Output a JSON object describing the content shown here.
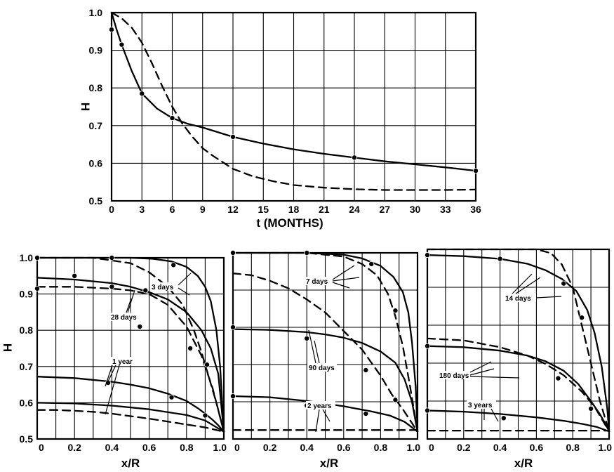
{
  "chart_data": [
    {
      "type": "line",
      "xlabel": "t (MONTHS)",
      "ylabel": "H",
      "xlim": [
        0,
        36
      ],
      "ylim": [
        0.5,
        1.0
      ],
      "xticks": [
        0,
        3,
        6,
        9,
        12,
        15,
        18,
        21,
        24,
        27,
        30,
        33,
        36
      ],
      "yticks": [
        0.5,
        0.6,
        0.7,
        0.8,
        0.9,
        1.0
      ],
      "ytick_labels": [
        "0.5",
        "0.6",
        "0.7",
        "0.8",
        "0.9",
        "1.0"
      ],
      "grid": true,
      "series": [
        {
          "style": "solid",
          "x": [
            0,
            0.5,
            1,
            2,
            3,
            4.5,
            6,
            7.5,
            9,
            12,
            15,
            18,
            21,
            24,
            27,
            30,
            33,
            36
          ],
          "y": [
            1.0,
            0.955,
            0.915,
            0.845,
            0.785,
            0.745,
            0.72,
            0.705,
            0.695,
            0.67,
            0.652,
            0.637,
            0.625,
            0.615,
            0.605,
            0.597,
            0.589,
            0.58
          ]
        },
        {
          "style": "dashed",
          "x": [
            0,
            1,
            2,
            3,
            4,
            5,
            6,
            7,
            8,
            9,
            10,
            12,
            14,
            16,
            18,
            21,
            24,
            27,
            30,
            33,
            36
          ],
          "y": [
            1.0,
            0.985,
            0.96,
            0.92,
            0.865,
            0.805,
            0.75,
            0.705,
            0.67,
            0.64,
            0.62,
            0.585,
            0.565,
            0.552,
            0.542,
            0.535,
            0.531,
            0.529,
            0.529,
            0.529,
            0.53
          ]
        }
      ],
      "points": {
        "x": [
          0,
          1,
          3,
          6,
          12,
          24,
          36
        ],
        "y": [
          0.955,
          0.915,
          0.785,
          0.72,
          0.67,
          0.615,
          0.58
        ]
      }
    },
    {
      "type": "line",
      "xlabel": "x/R",
      "ylabel": "H",
      "xlim": [
        0,
        1.0
      ],
      "ylim": [
        0.5,
        1.0
      ],
      "xticks": [
        0,
        0.2,
        0.4,
        0.6,
        0.8,
        1.0
      ],
      "xtick_labels": [
        "0",
        "0.2",
        "0.4",
        "0.6",
        "0.8",
        "1.0"
      ],
      "yticks": [
        0.5,
        0.6,
        0.7,
        0.8,
        0.9,
        1.0
      ],
      "ytick_labels": [
        "0.5",
        "0.6",
        "0.7",
        "0.8",
        "0.9",
        "1.0"
      ],
      "grid": true,
      "series": [
        {
          "style": "solid",
          "x": [
            0,
            0.3,
            0.5,
            0.62,
            0.72,
            0.8,
            0.86,
            0.9,
            0.93,
            0.96,
            0.98,
            1.0
          ],
          "y": [
            1.0,
            1.0,
            1.0,
            0.997,
            0.99,
            0.975,
            0.95,
            0.92,
            0.88,
            0.8,
            0.7,
            0.52
          ]
        },
        {
          "style": "dashed",
          "x": [
            0,
            0.3,
            0.5,
            0.6,
            0.7,
            0.78,
            0.84,
            0.88,
            0.92,
            0.96,
            1.0
          ],
          "y": [
            1.0,
            1.0,
            0.985,
            0.96,
            0.92,
            0.87,
            0.8,
            0.74,
            0.67,
            0.6,
            0.52
          ]
        },
        {
          "style": "solid",
          "x": [
            0,
            0.2,
            0.4,
            0.5,
            0.6,
            0.7,
            0.8,
            0.88,
            0.93,
            0.97,
            1.0
          ],
          "y": [
            0.945,
            0.94,
            0.93,
            0.92,
            0.905,
            0.885,
            0.85,
            0.8,
            0.75,
            0.68,
            0.52
          ]
        },
        {
          "style": "dashed",
          "x": [
            0,
            0.2,
            0.4,
            0.5,
            0.6,
            0.7,
            0.8,
            0.88,
            0.94,
            1.0
          ],
          "y": [
            0.92,
            0.92,
            0.915,
            0.91,
            0.9,
            0.87,
            0.81,
            0.73,
            0.64,
            0.52
          ]
        },
        {
          "style": "solid",
          "x": [
            0,
            0.2,
            0.4,
            0.5,
            0.6,
            0.7,
            0.8,
            0.86,
            0.9,
            0.94,
            0.97,
            1.0
          ],
          "y": [
            0.672,
            0.668,
            0.658,
            0.65,
            0.64,
            0.625,
            0.605,
            0.585,
            0.57,
            0.553,
            0.538,
            0.52
          ]
        },
        {
          "style": "solid",
          "x": [
            0,
            0.2,
            0.4,
            0.6,
            0.8,
            0.9,
            1.0
          ],
          "y": [
            0.6,
            0.598,
            0.592,
            0.582,
            0.566,
            0.551,
            0.52
          ]
        },
        {
          "style": "dashed",
          "x": [
            0,
            0.1,
            0.2,
            0.3,
            0.4,
            0.5,
            0.6,
            0.7,
            0.8,
            0.9,
            1.0
          ],
          "y": [
            0.58,
            0.58,
            0.578,
            0.575,
            0.57,
            0.563,
            0.556,
            0.548,
            0.54,
            0.532,
            0.52
          ]
        }
      ],
      "points": {
        "x": [
          0,
          0.4,
          0.73,
          0.2,
          0.58,
          0.0,
          0.38,
          0.72,
          0.9,
          0.4,
          0.55,
          0.82,
          0.91
        ],
        "y": [
          1.0,
          1.0,
          0.98,
          0.95,
          0.91,
          0.915,
          0.655,
          0.615,
          0.565,
          0.92,
          0.81,
          0.75,
          0.705
        ]
      },
      "annotations": [
        "3 days",
        "28 days",
        "1 year"
      ]
    },
    {
      "type": "line",
      "xlabel": "x/R",
      "xlim": [
        0,
        1.0
      ],
      "ylim": [
        0.5,
        1.0
      ],
      "xticks": [
        0,
        0.2,
        0.4,
        0.6,
        0.8,
        1.0
      ],
      "xtick_labels": [
        "0",
        "0.2",
        "0.4",
        "0.6",
        "0.8",
        "1.0"
      ],
      "yticks": [
        0.5,
        0.6,
        0.7,
        0.8,
        0.9,
        1.0
      ],
      "grid": true,
      "series": [
        {
          "style": "solid",
          "x": [
            0,
            0.4,
            0.6,
            0.7,
            0.8,
            0.87,
            0.92,
            0.95,
            0.97,
            0.99,
            1.0
          ],
          "y": [
            1.0,
            1.0,
            0.995,
            0.985,
            0.965,
            0.935,
            0.895,
            0.84,
            0.76,
            0.64,
            0.52
          ]
        },
        {
          "style": "dashed",
          "x": [
            0,
            0.4,
            0.6,
            0.7,
            0.78,
            0.84,
            0.88,
            0.92,
            0.96,
            1.0
          ],
          "y": [
            1.0,
            1.0,
            0.99,
            0.97,
            0.94,
            0.89,
            0.83,
            0.75,
            0.64,
            0.52
          ]
        },
        {
          "style": "dashed",
          "x": [
            0,
            0.1,
            0.2,
            0.3,
            0.4,
            0.5,
            0.6,
            0.7,
            0.8,
            0.86,
            0.92,
            0.96,
            1.0
          ],
          "y": [
            0.945,
            0.94,
            0.925,
            0.905,
            0.875,
            0.84,
            0.79,
            0.74,
            0.67,
            0.62,
            0.58,
            0.55,
            0.52
          ]
        },
        {
          "style": "solid",
          "x": [
            0,
            0.2,
            0.4,
            0.5,
            0.6,
            0.7,
            0.8,
            0.88,
            0.93,
            0.97,
            1.0
          ],
          "y": [
            0.795,
            0.793,
            0.787,
            0.781,
            0.772,
            0.758,
            0.735,
            0.705,
            0.66,
            0.6,
            0.52
          ]
        },
        {
          "style": "solid",
          "x": [
            0,
            0.2,
            0.4,
            0.6,
            0.75,
            0.85,
            0.93,
            1.0
          ],
          "y": [
            0.615,
            0.612,
            0.602,
            0.588,
            0.574,
            0.563,
            0.546,
            0.52
          ]
        },
        {
          "style": "dashed",
          "x": [
            0,
            0.2,
            0.4,
            0.6,
            0.8,
            1.0
          ],
          "y": [
            0.524,
            0.524,
            0.524,
            0.524,
            0.524,
            0.524
          ]
        }
      ],
      "points": {
        "x": [
          0.0,
          0.4,
          0.75,
          0.88,
          0.0,
          0.4,
          0.72,
          0.0,
          0.4,
          0.72,
          0.88
        ],
        "y": [
          1.0,
          1.0,
          0.97,
          0.845,
          0.8,
          0.77,
          0.685,
          0.615,
          0.59,
          0.568,
          0.605
        ]
      },
      "annotations": [
        "7 days",
        "90 days",
        "2 years"
      ]
    },
    {
      "type": "line",
      "xlabel": "x/R",
      "xlim": [
        0,
        1.0
      ],
      "ylim": [
        0.5,
        1.0
      ],
      "xticks": [
        0,
        0.2,
        0.4,
        0.6,
        0.8,
        1.0
      ],
      "xtick_labels": [
        "0",
        "0.2",
        "0.4",
        "0.6",
        "0.8",
        "1.0"
      ],
      "yticks": [
        0.5,
        0.6,
        0.7,
        0.8,
        0.9,
        1.0
      ],
      "grid": true,
      "series": [
        {
          "style": "solid",
          "x": [
            0,
            0.2,
            0.4,
            0.55,
            0.65,
            0.74,
            0.82,
            0.88,
            0.92,
            0.96,
            0.99,
            1.0
          ],
          "y": [
            0.985,
            0.982,
            0.975,
            0.962,
            0.945,
            0.922,
            0.89,
            0.84,
            0.78,
            0.69,
            0.58,
            0.52
          ]
        },
        {
          "style": "dashed",
          "x": [
            0,
            0.4,
            0.6,
            0.68,
            0.74,
            0.8,
            0.85,
            0.9,
            0.95,
            1.0
          ],
          "y": [
            1.0,
            1.0,
            1.0,
            0.99,
            0.96,
            0.9,
            0.8,
            0.7,
            0.6,
            0.52
          ]
        },
        {
          "style": "solid",
          "x": [
            0,
            0.2,
            0.4,
            0.55,
            0.65,
            0.75,
            0.83,
            0.9,
            0.95,
            0.98,
            1.0
          ],
          "y": [
            0.745,
            0.742,
            0.733,
            0.72,
            0.705,
            0.68,
            0.645,
            0.6,
            0.565,
            0.54,
            0.52
          ]
        },
        {
          "style": "dashed",
          "x": [
            0,
            0.2,
            0.4,
            0.55,
            0.65,
            0.75,
            0.85,
            0.92,
            1.0
          ],
          "y": [
            0.765,
            0.76,
            0.742,
            0.72,
            0.698,
            0.668,
            0.625,
            0.585,
            0.52
          ]
        },
        {
          "style": "solid",
          "x": [
            0,
            0.2,
            0.4,
            0.6,
            0.75,
            0.85,
            0.93,
            1.0
          ],
          "y": [
            0.575,
            0.572,
            0.566,
            0.557,
            0.548,
            0.54,
            0.532,
            0.52
          ]
        },
        {
          "style": "dashed",
          "x": [
            0,
            0.2,
            0.4,
            0.6,
            0.8,
            1.0
          ],
          "y": [
            0.522,
            0.522,
            0.522,
            0.522,
            0.522,
            0.522
          ]
        }
      ],
      "points": {
        "x": [
          0.0,
          0.4,
          0.75,
          0.85,
          0.0,
          0.72,
          0.9,
          0.0,
          0.42
        ],
        "y": [
          0.985,
          0.975,
          0.91,
          0.82,
          0.745,
          0.66,
          0.58,
          0.575,
          0.555
        ]
      },
      "annotations": [
        "14 days",
        "180 days",
        "3 years"
      ]
    }
  ]
}
